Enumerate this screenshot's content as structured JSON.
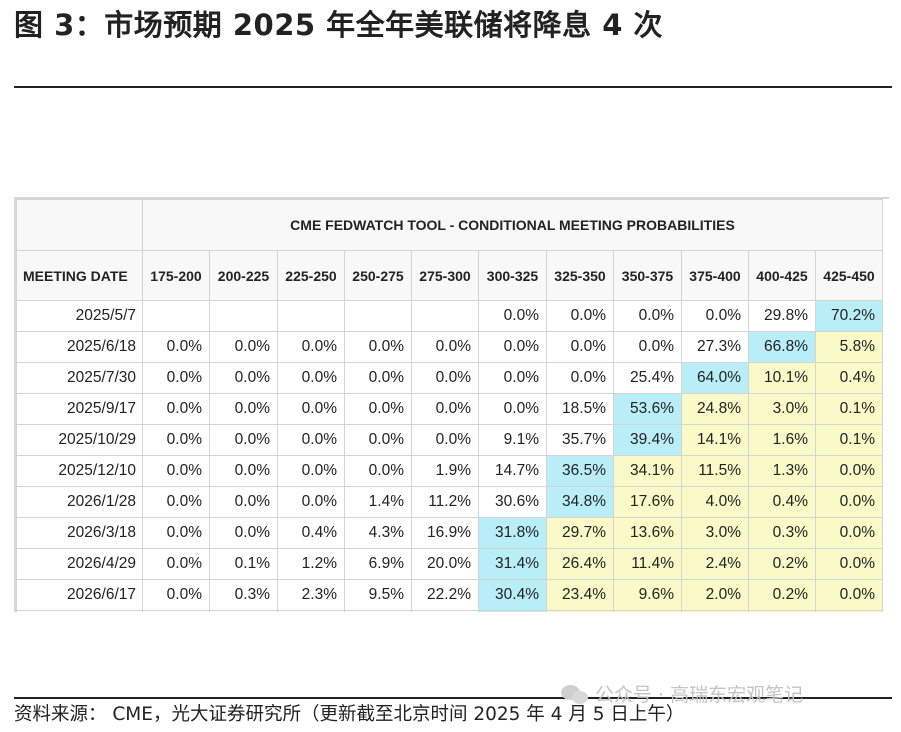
{
  "title": "图 3：市场预期 2025 年全年美联储将降息 4 次",
  "table": {
    "tool_title": "CME FEDWATCH TOOL - CONDITIONAL MEETING PROBABILITIES",
    "meeting_header": "MEETING DATE",
    "columns": [
      "175-200",
      "200-225",
      "225-250",
      "250-275",
      "275-300",
      "300-325",
      "325-350",
      "350-375",
      "375-400",
      "400-425",
      "425-450"
    ],
    "rows": [
      {
        "date": "2025/5/7",
        "values": [
          "",
          "",
          "",
          "",
          "",
          "0.0%",
          "0.0%",
          "0.0%",
          "0.0%",
          "29.8%",
          "70.2%"
        ]
      },
      {
        "date": "2025/6/18",
        "values": [
          "0.0%",
          "0.0%",
          "0.0%",
          "0.0%",
          "0.0%",
          "0.0%",
          "0.0%",
          "0.0%",
          "27.3%",
          "66.8%",
          "5.8%"
        ]
      },
      {
        "date": "2025/7/30",
        "values": [
          "0.0%",
          "0.0%",
          "0.0%",
          "0.0%",
          "0.0%",
          "0.0%",
          "0.0%",
          "25.4%",
          "64.0%",
          "10.1%",
          "0.4%"
        ]
      },
      {
        "date": "2025/9/17",
        "values": [
          "0.0%",
          "0.0%",
          "0.0%",
          "0.0%",
          "0.0%",
          "0.0%",
          "18.5%",
          "53.6%",
          "24.8%",
          "3.0%",
          "0.1%"
        ]
      },
      {
        "date": "2025/10/29",
        "values": [
          "0.0%",
          "0.0%",
          "0.0%",
          "0.0%",
          "0.0%",
          "9.1%",
          "35.7%",
          "39.4%",
          "14.1%",
          "1.6%",
          "0.1%"
        ]
      },
      {
        "date": "2025/12/10",
        "values": [
          "0.0%",
          "0.0%",
          "0.0%",
          "0.0%",
          "1.9%",
          "14.7%",
          "36.5%",
          "34.1%",
          "11.5%",
          "1.3%",
          "0.0%"
        ]
      },
      {
        "date": "2026/1/28",
        "values": [
          "0.0%",
          "0.0%",
          "0.0%",
          "1.4%",
          "11.2%",
          "30.6%",
          "34.8%",
          "17.6%",
          "4.0%",
          "0.4%",
          "0.0%"
        ]
      },
      {
        "date": "2026/3/18",
        "values": [
          "0.0%",
          "0.0%",
          "0.4%",
          "4.3%",
          "16.9%",
          "31.8%",
          "29.7%",
          "13.6%",
          "3.0%",
          "0.3%",
          "0.0%"
        ]
      },
      {
        "date": "2026/4/29",
        "values": [
          "0.0%",
          "0.1%",
          "1.2%",
          "6.9%",
          "20.0%",
          "31.4%",
          "26.4%",
          "11.4%",
          "2.4%",
          "0.2%",
          "0.0%"
        ]
      },
      {
        "date": "2026/6/17",
        "values": [
          "0.0%",
          "0.3%",
          "2.3%",
          "9.5%",
          "22.2%",
          "30.4%",
          "23.4%",
          "9.6%",
          "2.0%",
          "0.2%",
          "0.0%"
        ]
      }
    ],
    "highlight": {
      "blue": [
        [
          0,
          10
        ],
        [
          1,
          9
        ],
        [
          2,
          8
        ],
        [
          3,
          7
        ],
        [
          4,
          7
        ],
        [
          5,
          6
        ],
        [
          6,
          6
        ],
        [
          7,
          5
        ],
        [
          8,
          5
        ],
        [
          9,
          5
        ]
      ],
      "yellow_from_col": [
        10,
        10,
        9,
        8,
        8,
        7,
        7,
        6,
        6,
        6
      ]
    },
    "colors": {
      "blue": "#b9eef8",
      "yellow": "#fafac8",
      "header_bg": "#f8f8f8"
    }
  },
  "source": "资料来源：  CME，光大证券研究所（更新截至北京时间 2025 年 4 月 5 日上午）",
  "watermark": "公众号 · 高瑞东宏观笔记",
  "watermark_icon": "wechat-icon"
}
